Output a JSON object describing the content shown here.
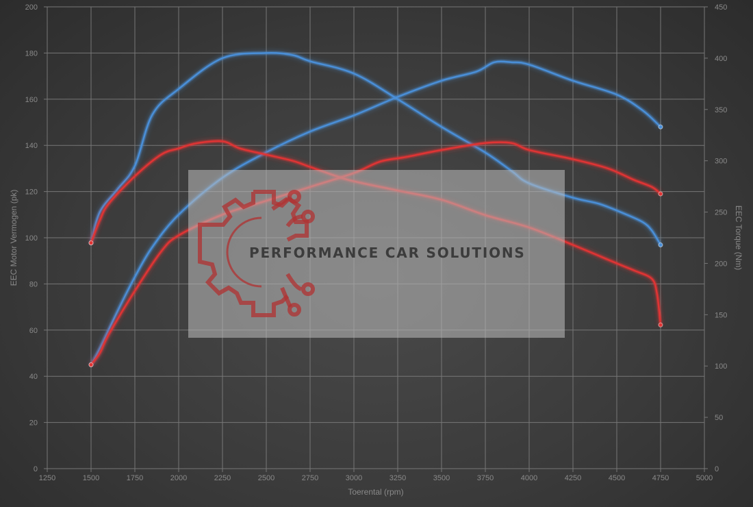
{
  "chart_data": {
    "type": "line",
    "title": "",
    "xlabel": "Toerental (rpm)",
    "ylabel_left": "EEC Motor Vermogen (pk)",
    "ylabel_right": "EEC Torque (Nm)",
    "xlim": [
      1250,
      5000
    ],
    "ylim_left": [
      0,
      200
    ],
    "ylim_right": [
      0,
      450
    ],
    "x_ticks": [
      1250,
      1500,
      1750,
      2000,
      2250,
      2500,
      2750,
      3000,
      3250,
      3500,
      3750,
      4000,
      4250,
      4500,
      4750,
      5000
    ],
    "y_ticks_left": [
      0,
      20,
      40,
      60,
      80,
      100,
      120,
      140,
      160,
      180,
      200
    ],
    "y_ticks_right": [
      0,
      50,
      100,
      150,
      200,
      250,
      300,
      350,
      400,
      450
    ],
    "grid": true,
    "legend": "none",
    "series": [
      {
        "axis": "left",
        "color": "#4a8fd8",
        "x": [
          1500,
          1550,
          1650,
          1750,
          1850,
          2000,
          2250,
          2500,
          2750,
          3000,
          3250,
          3500,
          3700,
          3800,
          3900,
          4000,
          4250,
          4500,
          4650,
          4750
        ],
        "values": [
          45,
          52,
          68,
          83,
          96,
          110,
          126,
          137,
          146,
          153,
          161,
          168,
          172,
          176,
          176,
          175,
          168,
          162,
          155,
          148
        ]
      },
      {
        "axis": "right",
        "color": "#4a8fd8",
        "x": [
          1500,
          1550,
          1650,
          1750,
          1850,
          2000,
          2250,
          2500,
          2650,
          2750,
          3000,
          3250,
          3500,
          3750,
          3900,
          4000,
          4250,
          4400,
          4550,
          4650,
          4700,
          4750
        ],
        "values": [
          220,
          250,
          272,
          295,
          345,
          370,
          400,
          405,
          403,
          397,
          385,
          360,
          333,
          308,
          290,
          278,
          264,
          258,
          248,
          240,
          232,
          218
        ]
      },
      {
        "axis": "left",
        "color": "#e03434",
        "x": [
          1500,
          1550,
          1600,
          1750,
          1900,
          2000,
          2250,
          2500,
          2750,
          3000,
          3150,
          3300,
          3500,
          3750,
          3900,
          4000,
          4250,
          4450,
          4600,
          4700,
          4750
        ],
        "values": [
          45,
          50,
          58,
          77,
          94,
          101,
          110,
          116,
          122,
          128,
          133,
          135,
          138,
          141,
          141,
          138,
          134,
          130,
          125,
          122,
          119
        ]
      },
      {
        "axis": "right",
        "color": "#e03434",
        "x": [
          1500,
          1550,
          1600,
          1750,
          1900,
          2000,
          2100,
          2250,
          2350,
          2500,
          2650,
          2750,
          2900,
          3000,
          3250,
          3500,
          3750,
          4000,
          4250,
          4500,
          4600,
          4700,
          4730,
          4750
        ],
        "values": [
          220,
          242,
          258,
          285,
          306,
          312,
          317,
          319,
          312,
          306,
          300,
          294,
          285,
          280,
          271,
          262,
          247,
          235,
          218,
          200,
          193,
          185,
          170,
          140
        ]
      }
    ],
    "watermark": {
      "text": "PERFORMANCE CAR SOLUTIONS",
      "logo_icon": "gear-circuit-logo",
      "logo_color": "#b03232"
    }
  }
}
